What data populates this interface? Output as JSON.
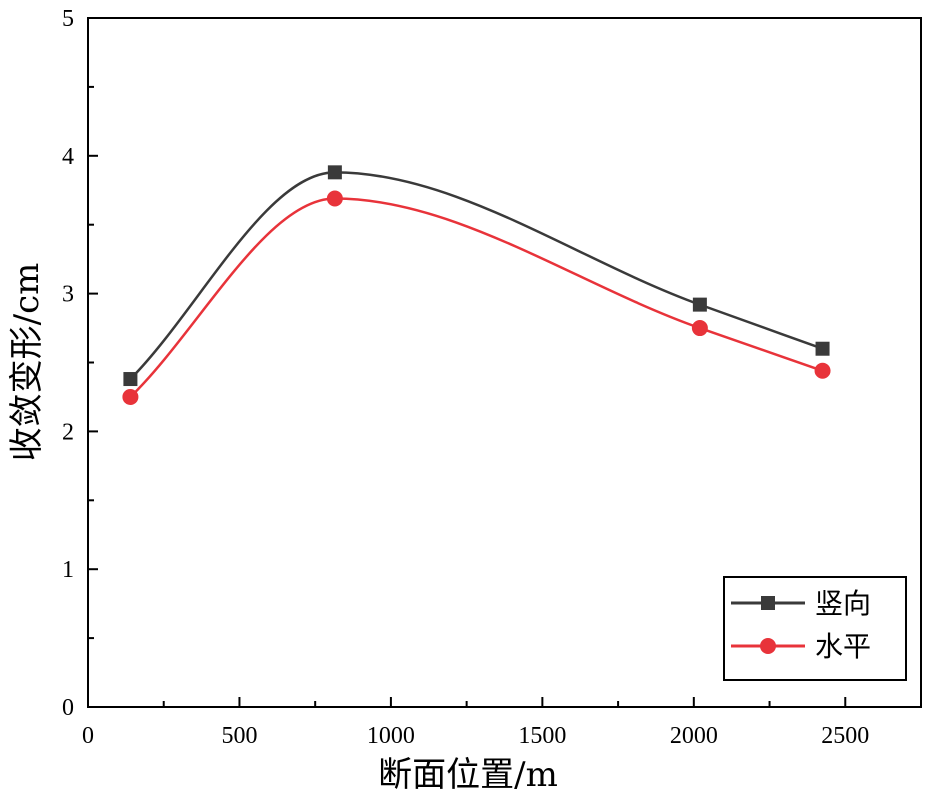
{
  "chart_data": {
    "type": "line",
    "title": "",
    "xlabel": "断面位置/m",
    "ylabel": "收敛变形/cm",
    "xlim": [
      0,
      2750
    ],
    "ylim": [
      0,
      5
    ],
    "xticks": [
      0,
      500,
      1000,
      1500,
      2000,
      2500
    ],
    "yticks": [
      0,
      1,
      2,
      3,
      4,
      5
    ],
    "grid": false,
    "legend_position": "bottom-right",
    "series": [
      {
        "name": "竖向",
        "color": "#3a3a3a",
        "marker": "square",
        "x": [
          140,
          815,
          2020,
          2425
        ],
        "y": [
          2.38,
          3.88,
          2.92,
          2.6
        ]
      },
      {
        "name": "水平",
        "color": "#e8333a",
        "marker": "circle",
        "x": [
          140,
          815,
          2020,
          2425
        ],
        "y": [
          2.25,
          3.69,
          2.75,
          2.44
        ]
      }
    ]
  }
}
